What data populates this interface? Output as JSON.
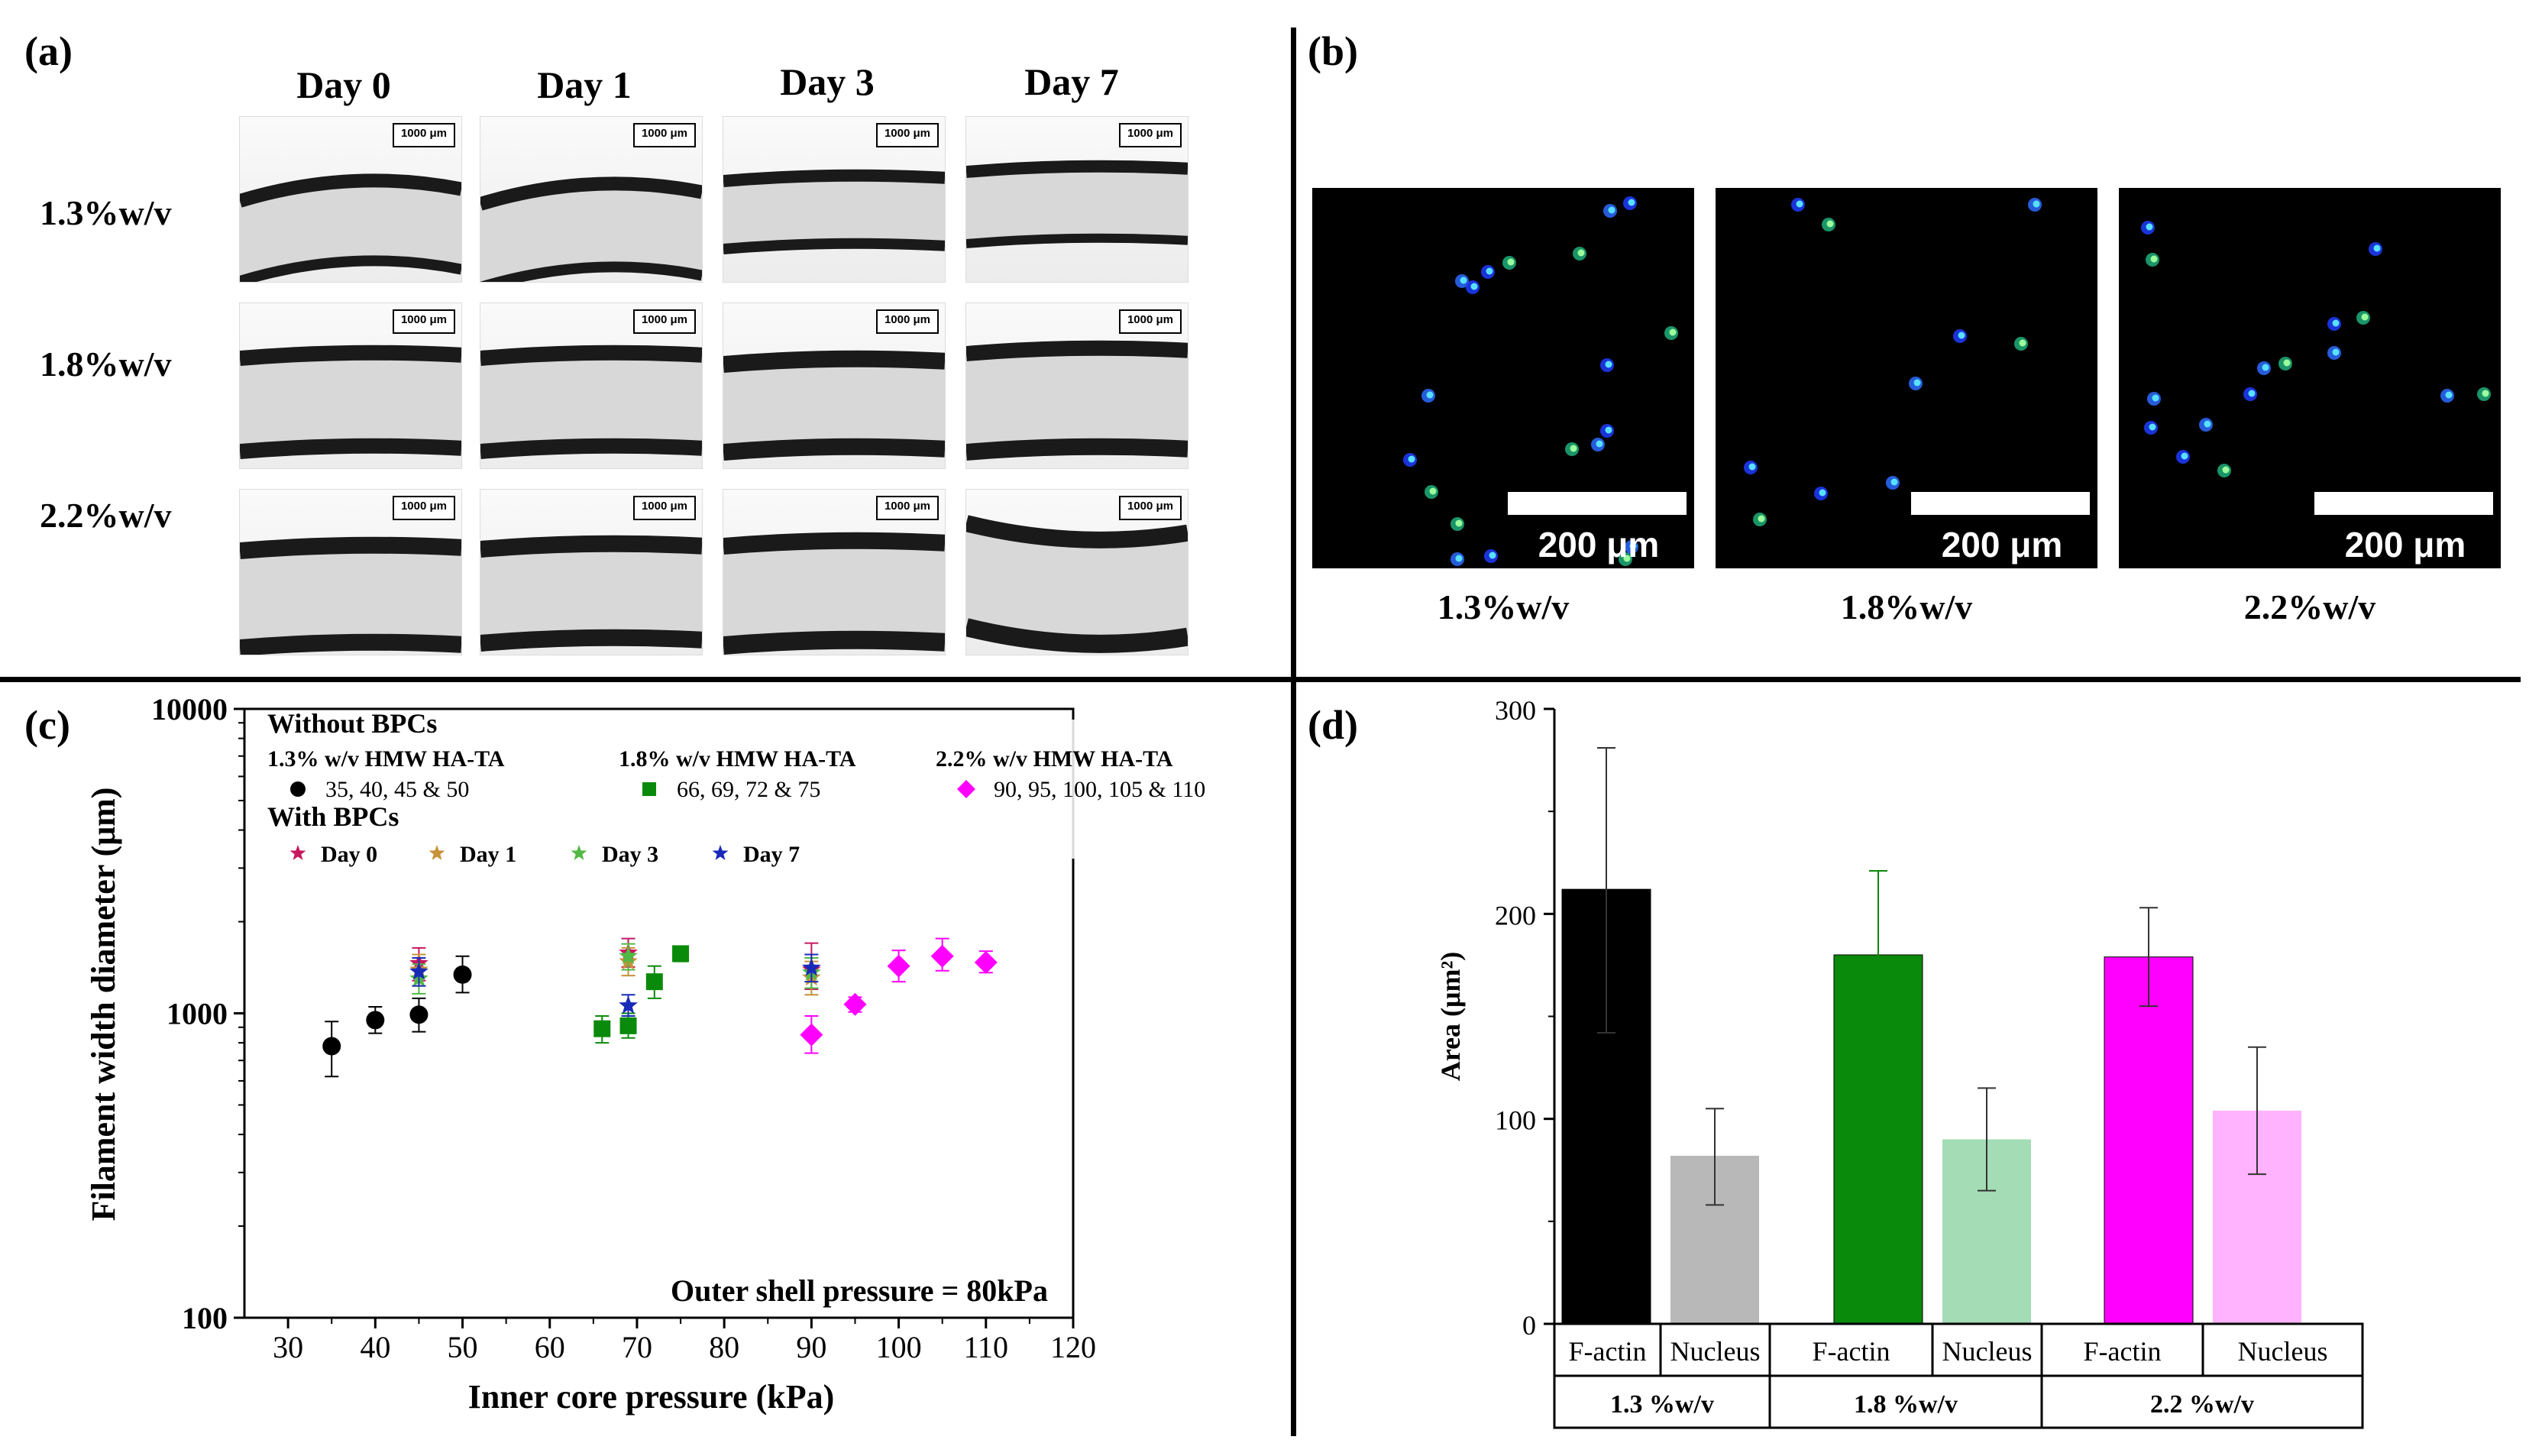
{
  "figure": {
    "panel_a": {
      "letter": "(a)",
      "columns": [
        "Day 0",
        "Day 1",
        "Day 3",
        "Day 7"
      ],
      "rows": [
        "1.3%w/v",
        "1.8%w/v",
        "2.2%w/v"
      ],
      "scale_label": "1000 μm"
    },
    "panel_b": {
      "letter": "(b)",
      "images": [
        {
          "caption": "1.3%w/v",
          "scale_label": "200 μm"
        },
        {
          "caption": "1.8%w/v",
          "scale_label": "200 μm"
        },
        {
          "caption": "2.2%w/v",
          "scale_label": "200 μm"
        }
      ]
    },
    "panel_c": {
      "letter": "(c)"
    },
    "panel_d": {
      "letter": "(d)"
    },
    "colors": {
      "black": "#000000",
      "green": "#0a8a0a",
      "magenta": "#ff00ff",
      "grey_light": "#b8b8b8",
      "green_light": "#a3dcb5",
      "magenta_light": "#ffb3ff",
      "day0": "#c8175f",
      "day1": "#c8913a",
      "day3": "#52b845",
      "day7": "#1a2ab8"
    }
  },
  "chart_data": [
    {
      "type": "scatter",
      "panel": "(c)",
      "xlabel": "Inner core pressure (kPa)",
      "ylabel": "Filament width diameter (μm)",
      "xlim": [
        25,
        120
      ],
      "ylim": [
        100,
        10000
      ],
      "yscale": "log",
      "xticks": [
        30,
        40,
        50,
        60,
        70,
        80,
        90,
        100,
        110,
        120
      ],
      "yticks": [
        {
          "value": 100,
          "label": "100"
        },
        {
          "value": 1000,
          "label": "1000"
        },
        {
          "value": 10000,
          "label": "10000"
        }
      ],
      "annotation": "Outer shell pressure = 80kPa",
      "legend": {
        "without_title": "Without BPCs",
        "with_title": "With BPCs",
        "groups": [
          {
            "name": "1.3% w/v  HMW HA-TA",
            "values_label": "35, 40, 45 & 50"
          },
          {
            "name": "1.8% w/v  HMW HA-TA",
            "values_label": "66, 69, 72 & 75"
          },
          {
            "name": "2.2% w/v  HMW HA-TA",
            "values_label": "90, 95, 100, 105 & 110"
          }
        ],
        "days": [
          "Day 0",
          "Day 1",
          "Day 3",
          "Day 7"
        ]
      },
      "series": [
        {
          "name": "1.3% w/v HMW HA-TA",
          "marker": "circle",
          "color": "#000000",
          "x": [
            35,
            40,
            45,
            50
          ],
          "y": [
            780,
            950,
            990,
            1340
          ],
          "err_low": [
            620,
            860,
            870,
            1170
          ],
          "err_high": [
            940,
            1050,
            1120,
            1540
          ]
        },
        {
          "name": "1.8% w/v HMW HA-TA",
          "marker": "square",
          "color": "#0a8a0a",
          "x": [
            66,
            69,
            72,
            75
          ],
          "y": [
            890,
            910,
            1270,
            1570
          ],
          "err_low": [
            800,
            830,
            1120,
            1480
          ],
          "err_high": [
            980,
            1000,
            1430,
            1650
          ]
        },
        {
          "name": "2.2% w/v HMW HA-TA",
          "marker": "diamond",
          "color": "#ff00ff",
          "x": [
            90,
            95,
            100,
            105,
            110
          ],
          "y": [
            850,
            1070,
            1430,
            1540,
            1470
          ],
          "err_low": [
            740,
            1010,
            1270,
            1380,
            1360
          ],
          "err_high": [
            980,
            1130,
            1610,
            1760,
            1600
          ]
        },
        {
          "name": "Day 0",
          "marker": "star",
          "color": "#c8175f",
          "x": [
            45,
            69,
            90
          ],
          "y": [
            1460,
            1580,
            1390
          ],
          "err_low": [
            1280,
            1420,
            1200
          ],
          "err_high": [
            1640,
            1760,
            1700
          ]
        },
        {
          "name": "Day 1",
          "marker": "star",
          "color": "#c8913a",
          "x": [
            45,
            69,
            90
          ],
          "y": [
            1390,
            1480,
            1310
          ],
          "err_low": [
            1230,
            1330,
            1150
          ],
          "err_high": [
            1560,
            1640,
            1480
          ]
        },
        {
          "name": "Day 3",
          "marker": "star",
          "color": "#52b845",
          "x": [
            45,
            69,
            90
          ],
          "y": [
            1300,
            1540,
            1360
          ],
          "err_low": [
            1160,
            1390,
            1210
          ],
          "err_high": [
            1450,
            1690,
            1520
          ]
        },
        {
          "name": "Day 7",
          "marker": "star",
          "color": "#1a2ab8",
          "x": [
            45,
            69,
            90
          ],
          "y": [
            1370,
            1060,
            1410
          ],
          "err_low": [
            1230,
            980,
            1270
          ],
          "err_high": [
            1520,
            1150,
            1560
          ]
        }
      ]
    },
    {
      "type": "bar",
      "panel": "(d)",
      "ylabel": "Area (μm²)",
      "ylim": [
        0,
        300
      ],
      "yticks": [
        0,
        100,
        200,
        300
      ],
      "categories": [
        "F-actin",
        "Nucleus",
        "F-actin",
        "Nucleus",
        "F-actin",
        "Nucleus"
      ],
      "groups": [
        "1.3 %w/v",
        "1.8 %w/v",
        "2.2 %w/v"
      ],
      "values": [
        212,
        82,
        180,
        90,
        179,
        104
      ],
      "err_low": [
        142,
        58,
        140,
        65,
        155,
        73
      ],
      "err_high": [
        281,
        105,
        221,
        115,
        203,
        135
      ],
      "colors": [
        "#000000",
        "#b8b8b8",
        "#0a8a0a",
        "#a3dcb5",
        "#ff00ff",
        "#ffb3ff"
      ]
    }
  ]
}
